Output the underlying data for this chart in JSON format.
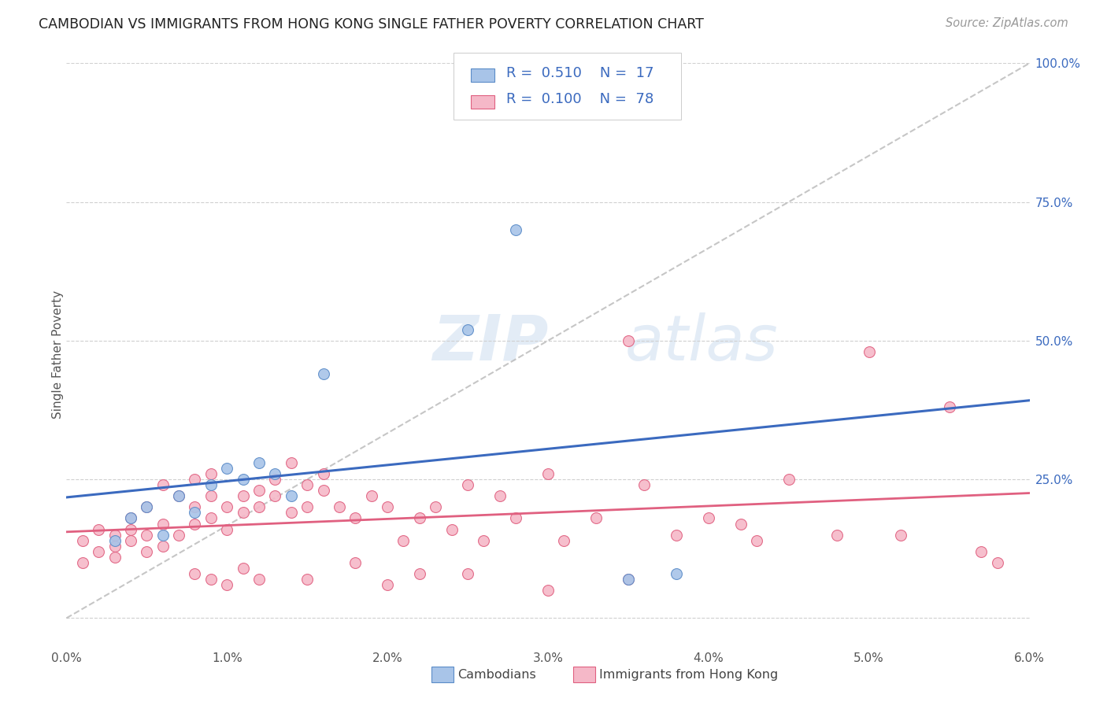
{
  "title": "CAMBODIAN VS IMMIGRANTS FROM HONG KONG SINGLE FATHER POVERTY CORRELATION CHART",
  "source": "Source: ZipAtlas.com",
  "ylabel": "Single Father Poverty",
  "legend_r1": "0.510",
  "legend_n1": "17",
  "legend_r2": "0.100",
  "legend_n2": "78",
  "color_cambodian_fill": "#a8c4e8",
  "color_cambodian_edge": "#5b8cc8",
  "color_hk_fill": "#f5b8c8",
  "color_hk_edge": "#e06080",
  "color_blue_line": "#3b6abf",
  "color_pink_line": "#e06080",
  "color_gray_dashed": "#b8b8b8",
  "color_title": "#222222",
  "color_source": "#999999",
  "color_legend_text": "#3b6abf",
  "color_right_ytick": "#3b6abf",
  "background_color": "#ffffff",
  "watermark_zip": "ZIP",
  "watermark_atlas": "atlas",
  "cambodian_x": [
    0.003,
    0.004,
    0.005,
    0.006,
    0.007,
    0.008,
    0.009,
    0.01,
    0.011,
    0.012,
    0.013,
    0.014,
    0.016,
    0.025,
    0.028,
    0.035,
    0.038
  ],
  "cambodian_y": [
    0.14,
    0.18,
    0.2,
    0.15,
    0.22,
    0.19,
    0.24,
    0.27,
    0.25,
    0.28,
    0.26,
    0.22,
    0.44,
    0.52,
    0.7,
    0.07,
    0.08
  ],
  "hk_x": [
    0.001,
    0.001,
    0.002,
    0.002,
    0.003,
    0.003,
    0.003,
    0.004,
    0.004,
    0.004,
    0.005,
    0.005,
    0.005,
    0.006,
    0.006,
    0.006,
    0.007,
    0.007,
    0.008,
    0.008,
    0.008,
    0.009,
    0.009,
    0.009,
    0.01,
    0.01,
    0.011,
    0.011,
    0.012,
    0.012,
    0.013,
    0.013,
    0.014,
    0.014,
    0.015,
    0.015,
    0.016,
    0.016,
    0.017,
    0.018,
    0.019,
    0.02,
    0.021,
    0.022,
    0.023,
    0.024,
    0.025,
    0.026,
    0.027,
    0.028,
    0.03,
    0.031,
    0.033,
    0.035,
    0.036,
    0.038,
    0.04,
    0.042,
    0.043,
    0.045,
    0.048,
    0.05,
    0.052,
    0.055,
    0.057,
    0.058,
    0.02,
    0.025,
    0.03,
    0.035,
    0.008,
    0.009,
    0.01,
    0.011,
    0.012,
    0.015,
    0.018,
    0.022
  ],
  "hk_y": [
    0.1,
    0.14,
    0.12,
    0.16,
    0.13,
    0.15,
    0.11,
    0.14,
    0.18,
    0.16,
    0.12,
    0.15,
    0.2,
    0.17,
    0.24,
    0.13,
    0.22,
    0.15,
    0.25,
    0.2,
    0.17,
    0.22,
    0.18,
    0.26,
    0.2,
    0.16,
    0.22,
    0.19,
    0.23,
    0.2,
    0.25,
    0.22,
    0.19,
    0.28,
    0.24,
    0.2,
    0.26,
    0.23,
    0.2,
    0.18,
    0.22,
    0.2,
    0.14,
    0.18,
    0.2,
    0.16,
    0.24,
    0.14,
    0.22,
    0.18,
    0.26,
    0.14,
    0.18,
    0.5,
    0.24,
    0.15,
    0.18,
    0.17,
    0.14,
    0.25,
    0.15,
    0.48,
    0.15,
    0.38,
    0.12,
    0.1,
    0.06,
    0.08,
    0.05,
    0.07,
    0.08,
    0.07,
    0.06,
    0.09,
    0.07,
    0.07,
    0.1,
    0.08
  ],
  "xlim": [
    0.0,
    0.06
  ],
  "ylim": [
    -0.05,
    1.0
  ],
  "xticks": [
    0.0,
    0.01,
    0.02,
    0.03,
    0.04,
    0.05,
    0.06
  ],
  "xticklabels": [
    "0.0%",
    "1.0%",
    "2.0%",
    "3.0%",
    "4.0%",
    "5.0%",
    "6.0%"
  ],
  "yticks_right": [
    0.0,
    0.25,
    0.5,
    0.75,
    1.0
  ],
  "yticklabels_right": [
    "",
    "25.0%",
    "50.0%",
    "75.0%",
    "100.0%"
  ]
}
